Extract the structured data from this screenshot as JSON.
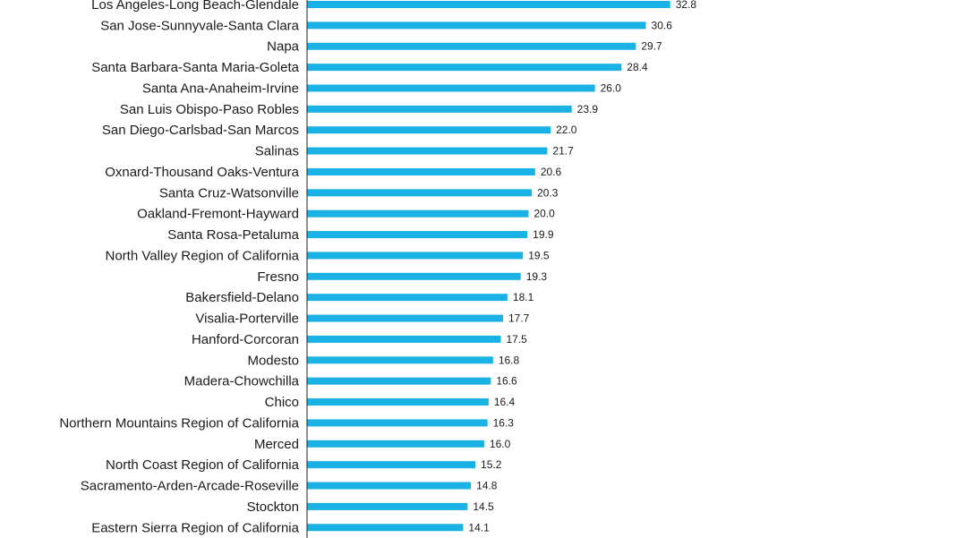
{
  "chart_data": {
    "type": "bar",
    "orientation": "horizontal",
    "categories": [
      "Los Angeles-Long Beach-Glendale",
      "San Jose-Sunnyvale-Santa Clara",
      "Napa",
      "Santa Barbara-Santa Maria-Goleta",
      "Santa Ana-Anaheim-Irvine",
      "San Luis Obispo-Paso Robles",
      "San Diego-Carlsbad-San Marcos",
      "Salinas",
      "Oxnard-Thousand Oaks-Ventura",
      "Santa Cruz-Watsonville",
      "Oakland-Fremont-Hayward",
      "Santa Rosa-Petaluma",
      "North Valley Region of California",
      "Fresno",
      "Bakersfield-Delano",
      "Visalia-Porterville",
      "Hanford-Corcoran",
      "Modesto",
      "Madera-Chowchilla",
      "Chico",
      "Northern Mountains Region of California",
      "Merced",
      "North Coast Region of California",
      "Sacramento-Arden-Arcade-Roseville",
      "Stockton",
      "Eastern Sierra Region of California"
    ],
    "values": [
      32.8,
      30.6,
      29.7,
      28.4,
      26.0,
      23.9,
      22.0,
      21.7,
      20.6,
      20.3,
      20.0,
      19.9,
      19.5,
      19.3,
      18.1,
      17.7,
      17.5,
      16.8,
      16.6,
      16.4,
      16.3,
      16.0,
      15.2,
      14.8,
      14.5,
      14.1
    ],
    "value_labels": [
      "32.8",
      "30.6",
      "29.7",
      "28.4",
      "26.0",
      "23.9",
      "22.0",
      "21.7",
      "20.6",
      "20.3",
      "20.0",
      "19.9",
      "19.5",
      "19.3",
      "18.1",
      "17.7",
      "17.5",
      "16.8",
      "16.6",
      "16.4",
      "16.3",
      "16.0",
      "15.2",
      "14.8",
      "14.5",
      "14.1"
    ],
    "title": "",
    "xlabel": "",
    "ylabel": "",
    "xlim": [
      0,
      36
    ],
    "grid": false,
    "bar_color": "#1ab2e5",
    "text_color": "#1a1a1a"
  }
}
